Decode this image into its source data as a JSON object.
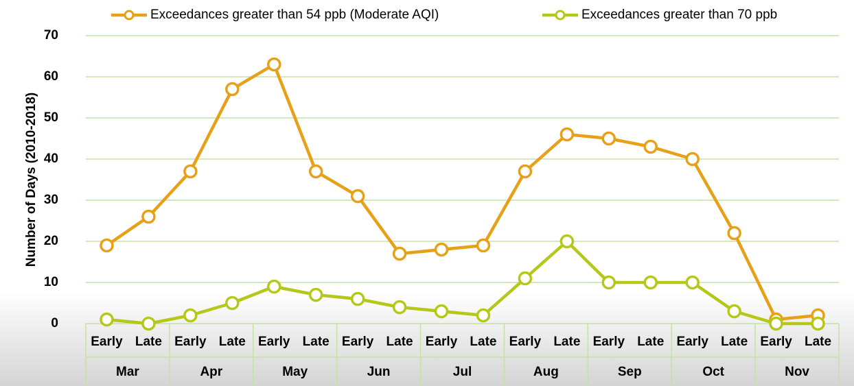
{
  "chart_data": {
    "type": "line",
    "y_label": "Number of Days (2010-2018)",
    "categories": [
      "Early",
      "Late",
      "Early",
      "Late",
      "Early",
      "Late",
      "Early",
      "Late",
      "Early",
      "Late",
      "Early",
      "Late",
      "Early",
      "Late",
      "Early",
      "Late",
      "Early",
      "Late"
    ],
    "category_groups": [
      "Mar",
      "Apr",
      "May",
      "Jun",
      "Jul",
      "Aug",
      "Sep",
      "Oct",
      "Nov"
    ],
    "series": [
      {
        "name": "Exceedances greater than 54 ppb (Moderate AQI)",
        "color": "#e6a118",
        "values": [
          19,
          26,
          37,
          57,
          63,
          37,
          31,
          17,
          18,
          19,
          37,
          46,
          45,
          43,
          40,
          22,
          1,
          2
        ]
      },
      {
        "name": "Exceedances greater than 70 ppb",
        "color": "#b5c81a",
        "values": [
          1,
          0,
          2,
          5,
          9,
          7,
          6,
          4,
          3,
          2,
          11,
          20,
          10,
          10,
          10,
          3,
          0,
          0
        ]
      }
    ],
    "ylim": [
      0,
      70
    ],
    "yticks": [
      0,
      10,
      20,
      30,
      40,
      50,
      60,
      70
    ],
    "grid": true,
    "grid_color": "#c6e0a8",
    "legend": "top"
  }
}
